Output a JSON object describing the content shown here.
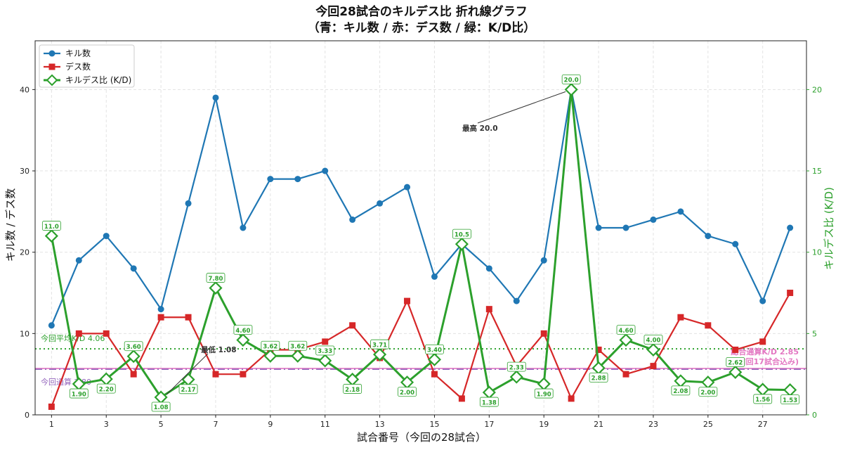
{
  "chart_data": {
    "type": "line",
    "title_line1": "今回28試合のキルデス比 折れ線グラフ",
    "title_line2": "（青：キル数 / 赤：デス数 / 緑：K/D比）",
    "xlabel": "試合番号（今回の28試合）",
    "ylabel_left": "キル数 / デス数",
    "ylabel_right": "キルデス比 (K/D)",
    "x": [
      1,
      2,
      3,
      4,
      5,
      6,
      7,
      8,
      9,
      10,
      11,
      12,
      13,
      14,
      15,
      16,
      17,
      18,
      19,
      20,
      21,
      22,
      23,
      24,
      25,
      26,
      27,
      28
    ],
    "x_ticks": [
      "1",
      "3",
      "5",
      "7",
      "9",
      "11",
      "13",
      "15",
      "17",
      "19",
      "21",
      "23",
      "25",
      "27"
    ],
    "xlim": [
      0.4,
      28.6
    ],
    "ylim_left": [
      0,
      46
    ],
    "ylim_right": [
      0,
      23
    ],
    "y_ticks_left": [
      "0",
      "10",
      "20",
      "30",
      "40"
    ],
    "y_ticks_right": [
      "0",
      "5",
      "10",
      "15",
      "20"
    ],
    "grid": true,
    "legend_position": "top-left",
    "series": [
      {
        "name": "キル数",
        "axis": "left",
        "color": "#1f77b4",
        "marker": "circle",
        "values": [
          11,
          19,
          22,
          18,
          13,
          26,
          39,
          23,
          29,
          29,
          30,
          24,
          26,
          28,
          17,
          21,
          18,
          14,
          19,
          40,
          23,
          23,
          24,
          25,
          22,
          21,
          14,
          23
        ]
      },
      {
        "name": "デス数",
        "axis": "left",
        "color": "#d62728",
        "marker": "square",
        "values": [
          1,
          10,
          10,
          5,
          12,
          12,
          5,
          5,
          8,
          8,
          9,
          11,
          7,
          14,
          5,
          2,
          13,
          6,
          10,
          2,
          8,
          5,
          6,
          12,
          11,
          8,
          9,
          15
        ]
      },
      {
        "name": "キルデス比 (K/D)",
        "axis": "right",
        "color": "#2ca02c",
        "marker": "diamond",
        "values": [
          11.0,
          1.9,
          2.2,
          3.6,
          1.08,
          2.17,
          7.8,
          4.6,
          3.62,
          3.62,
          3.33,
          2.18,
          3.71,
          2.0,
          3.4,
          10.5,
          1.38,
          2.33,
          1.9,
          20.0,
          2.88,
          4.6,
          4.0,
          2.08,
          2.0,
          2.62,
          1.56,
          1.53
        ]
      }
    ],
    "kd_labels": [
      "11.0",
      "1.90",
      "2.20",
      "3.60",
      "1.08",
      "2.17",
      "7.80",
      "4.60",
      "3.62",
      "3.62",
      "3.33",
      "2.18",
      "3.71",
      "2.00",
      "3.40",
      "10.5",
      "1.38",
      "2.33",
      "1.90",
      "20.0",
      "2.88",
      "4.60",
      "4.00",
      "2.08",
      "2.00",
      "2.62",
      "1.56",
      "1.53"
    ],
    "reference_lines": [
      {
        "label": "今回平均K/D 4.06",
        "value": 4.06,
        "color": "#2ca02c",
        "style": "dotted"
      },
      {
        "label": "総合通算K/D 2.85",
        "sublabel": "(前回17試合込み)",
        "value": 2.85,
        "color": "#e377c2",
        "style": "solid"
      },
      {
        "label": "今回通算 2.80",
        "value": 2.8,
        "color": "#9467bd",
        "style": "dashdot"
      }
    ],
    "annotations": [
      {
        "text": "最高 20.0",
        "x": 20,
        "y": 20.0
      },
      {
        "text": "最低 1.08",
        "x": 5,
        "y": 1.08
      }
    ]
  }
}
